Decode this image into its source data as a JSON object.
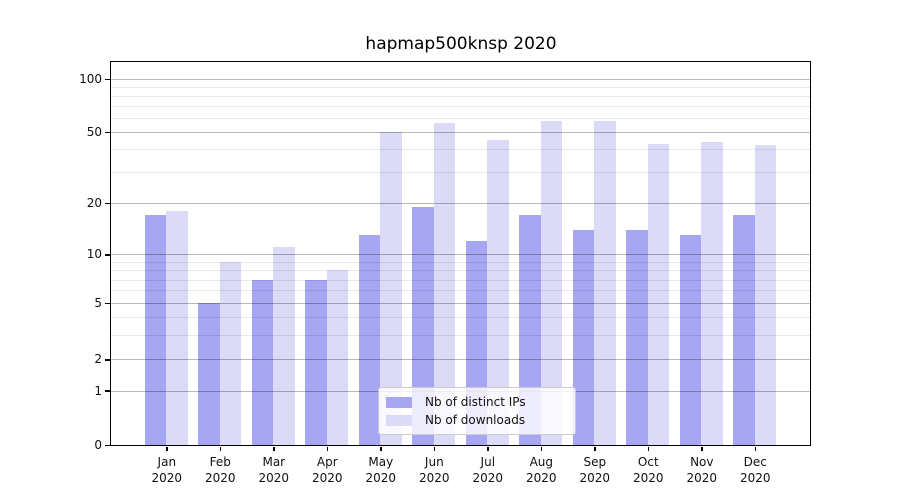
{
  "title": "hapmap500knsp 2020",
  "colors": {
    "ips": "#a6a6f2",
    "downloads": "#dbdbf8",
    "grid_major": "rgba(0,0,0,0.28)",
    "grid_minor": "rgba(0,0,0,0.09)",
    "spine": "#000000"
  },
  "legend": {
    "position": "lower center",
    "items": [
      {
        "label": "Nb of distinct IPs",
        "color_key": "ips"
      },
      {
        "label": "Nb of downloads",
        "color_key": "downloads"
      }
    ]
  },
  "chart_data": {
    "type": "bar",
    "title": "hapmap500knsp 2020",
    "categories": [
      "Jan",
      "Feb",
      "Mar",
      "Apr",
      "May",
      "Jun",
      "Jul",
      "Aug",
      "Sep",
      "Oct",
      "Nov",
      "Dec"
    ],
    "x_tick_second_line": "2020",
    "series": [
      {
        "name": "Nb of distinct IPs",
        "values": [
          17,
          5,
          7,
          7,
          13,
          19,
          12,
          17,
          14,
          14,
          13,
          17
        ]
      },
      {
        "name": "Nb of downloads",
        "values": [
          18,
          9,
          11,
          8,
          50,
          56,
          45,
          58,
          58,
          43,
          44,
          42
        ]
      }
    ],
    "xlabel": "",
    "ylabel": "",
    "yscale": "log-like (symlog, linear below 1)",
    "ylim": [
      0,
      125
    ],
    "y_ticks": [
      100,
      50,
      20,
      10,
      5,
      2,
      1,
      0
    ],
    "y_minor_gridlines": [
      3,
      4,
      6,
      7,
      8,
      9,
      30,
      40,
      60,
      70,
      80,
      90
    ],
    "grid": true,
    "legend_position": "lower center"
  }
}
